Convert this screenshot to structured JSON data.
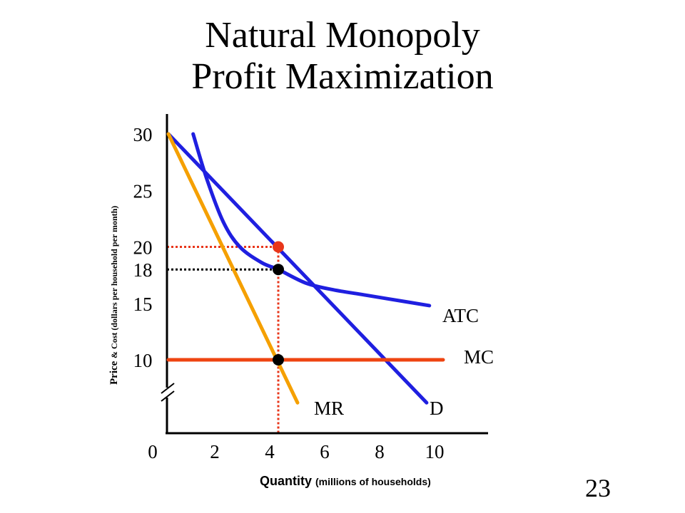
{
  "title_line1": "Natural Monopoly",
  "title_line2": "Profit Maximization",
  "page_number": "23",
  "colors": {
    "demand": "#1f1fe0",
    "atc": "#1f1fe0",
    "mr": "#f5a000",
    "mc": "#ee4411",
    "highlight": "#e8361a",
    "black": "#000000"
  },
  "chart_data": {
    "type": "line",
    "xlabel": "Quantity",
    "xlabel_sub": "(millions of households)",
    "ylabel": "Price",
    "ylabel_sub": "& Cost (dollars per household per month)",
    "x_ticks": [
      "0",
      "2",
      "4",
      "6",
      "8",
      "10"
    ],
    "y_ticks": [
      "30",
      "25",
      "20",
      "18",
      "15",
      "10"
    ],
    "highlight_y_tick": "20",
    "axis_break": true,
    "series": [
      {
        "name": "D",
        "color": "#1f1fe0",
        "points": [
          [
            0,
            30
          ],
          [
            9.4,
            6.2
          ]
        ]
      },
      {
        "name": "MR",
        "color": "#f5a000",
        "points": [
          [
            0,
            30
          ],
          [
            4.7,
            6.2
          ]
        ]
      },
      {
        "name": "MC",
        "color": "#ee4411",
        "points": [
          [
            0,
            10
          ],
          [
            10,
            10
          ]
        ]
      },
      {
        "name": "ATC",
        "color": "#1f1fe0",
        "points": [
          [
            0.9,
            30
          ],
          [
            1.4,
            26
          ],
          [
            2,
            22.2
          ],
          [
            2.6,
            20
          ],
          [
            3.4,
            18.6
          ],
          [
            4,
            18
          ],
          [
            5,
            16.8
          ],
          [
            6,
            16.2
          ],
          [
            7,
            15.8
          ],
          [
            8,
            15.4
          ],
          [
            9.5,
            14.8
          ]
        ]
      }
    ],
    "reference_points": [
      {
        "x": 4,
        "y": 20,
        "color": "#e8361a",
        "guide_color": "#e8361a"
      },
      {
        "x": 4,
        "y": 18,
        "color": "#000000",
        "guide_color": "#000000"
      },
      {
        "x": 4,
        "y": 10,
        "color": "#000000",
        "guide_color": "#e8361a"
      }
    ]
  }
}
